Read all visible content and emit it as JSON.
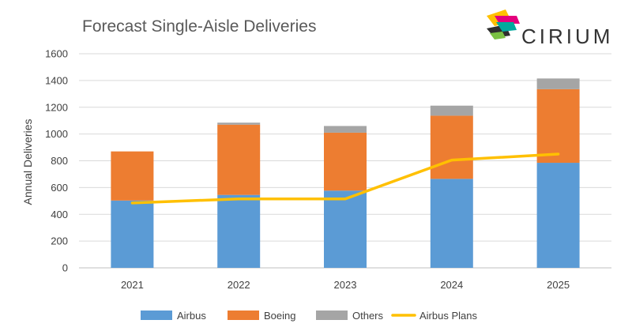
{
  "brand": {
    "name": "CIRIUM"
  },
  "chart_data": {
    "type": "bar",
    "stacked": true,
    "title": "Forecast Single-Aisle Deliveries",
    "xlabel": "",
    "ylabel": "Annual Deliveries",
    "ylim": [
      0,
      1600
    ],
    "yticks": [
      "0",
      "200",
      "400",
      "600",
      "800",
      "1000",
      "1200",
      "1400",
      "1600"
    ],
    "categories": [
      "2021",
      "2022",
      "2023",
      "2024",
      "2025"
    ],
    "grid": true,
    "legend_position": "bottom",
    "series": [
      {
        "name": "Airbus",
        "type": "bar",
        "color": "#5b9bd5",
        "values": [
          503,
          545,
          577,
          665,
          785
        ]
      },
      {
        "name": "Boeing",
        "type": "bar",
        "color": "#ed7d31",
        "values": [
          367,
          525,
          433,
          472,
          550
        ]
      },
      {
        "name": "Others",
        "type": "bar",
        "color": "#a5a5a5",
        "values": [
          0,
          15,
          50,
          75,
          80
        ]
      },
      {
        "name": "Airbus Plans",
        "type": "line",
        "color": "#ffc000",
        "values": [
          485,
          515,
          515,
          805,
          850
        ]
      }
    ]
  }
}
